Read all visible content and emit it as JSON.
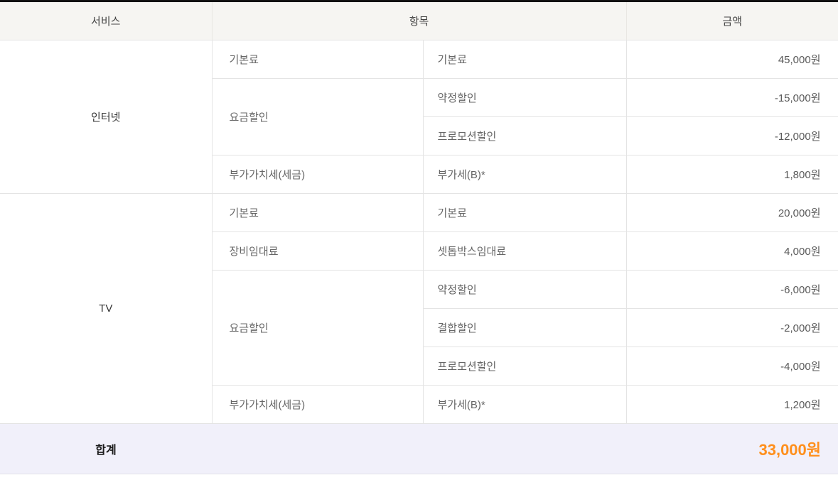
{
  "table": {
    "headers": {
      "service": "서비스",
      "item": "항목",
      "amount": "금액"
    },
    "groups": [
      {
        "service": "인터넷",
        "rows": [
          {
            "category": "기본료",
            "category_rowspan": 1,
            "item": "기본료",
            "amount": "45,000원"
          },
          {
            "category": "요금할인",
            "category_rowspan": 2,
            "item": "약정할인",
            "amount": "-15,000원"
          },
          {
            "item": "프로모션할인",
            "amount": "-12,000원"
          },
          {
            "category": "부가가치세(세금)",
            "category_rowspan": 1,
            "item": "부가세(B)*",
            "amount": "1,800원"
          }
        ]
      },
      {
        "service": "TV",
        "rows": [
          {
            "category": "기본료",
            "category_rowspan": 1,
            "item": "기본료",
            "amount": "20,000원"
          },
          {
            "category": "장비임대료",
            "category_rowspan": 1,
            "item": "셋톱박스임대료",
            "amount": "4,000원"
          },
          {
            "category": "요금할인",
            "category_rowspan": 3,
            "item": "약정할인",
            "amount": "-6,000원"
          },
          {
            "item": "결합할인",
            "amount": "-2,000원"
          },
          {
            "item": "프로모션할인",
            "amount": "-4,000원"
          },
          {
            "category": "부가가치세(세금)",
            "category_rowspan": 1,
            "item": "부가세(B)*",
            "amount": "1,200원"
          }
        ]
      }
    ],
    "footer": {
      "label": "합계",
      "total": "33,000원"
    },
    "colors": {
      "top_border": "#111111",
      "header_bg": "#f6f5f2",
      "grid_line": "#e4e4e4",
      "footer_bg": "#f1f0fa",
      "accent_orange": "#ff8f1c"
    }
  }
}
